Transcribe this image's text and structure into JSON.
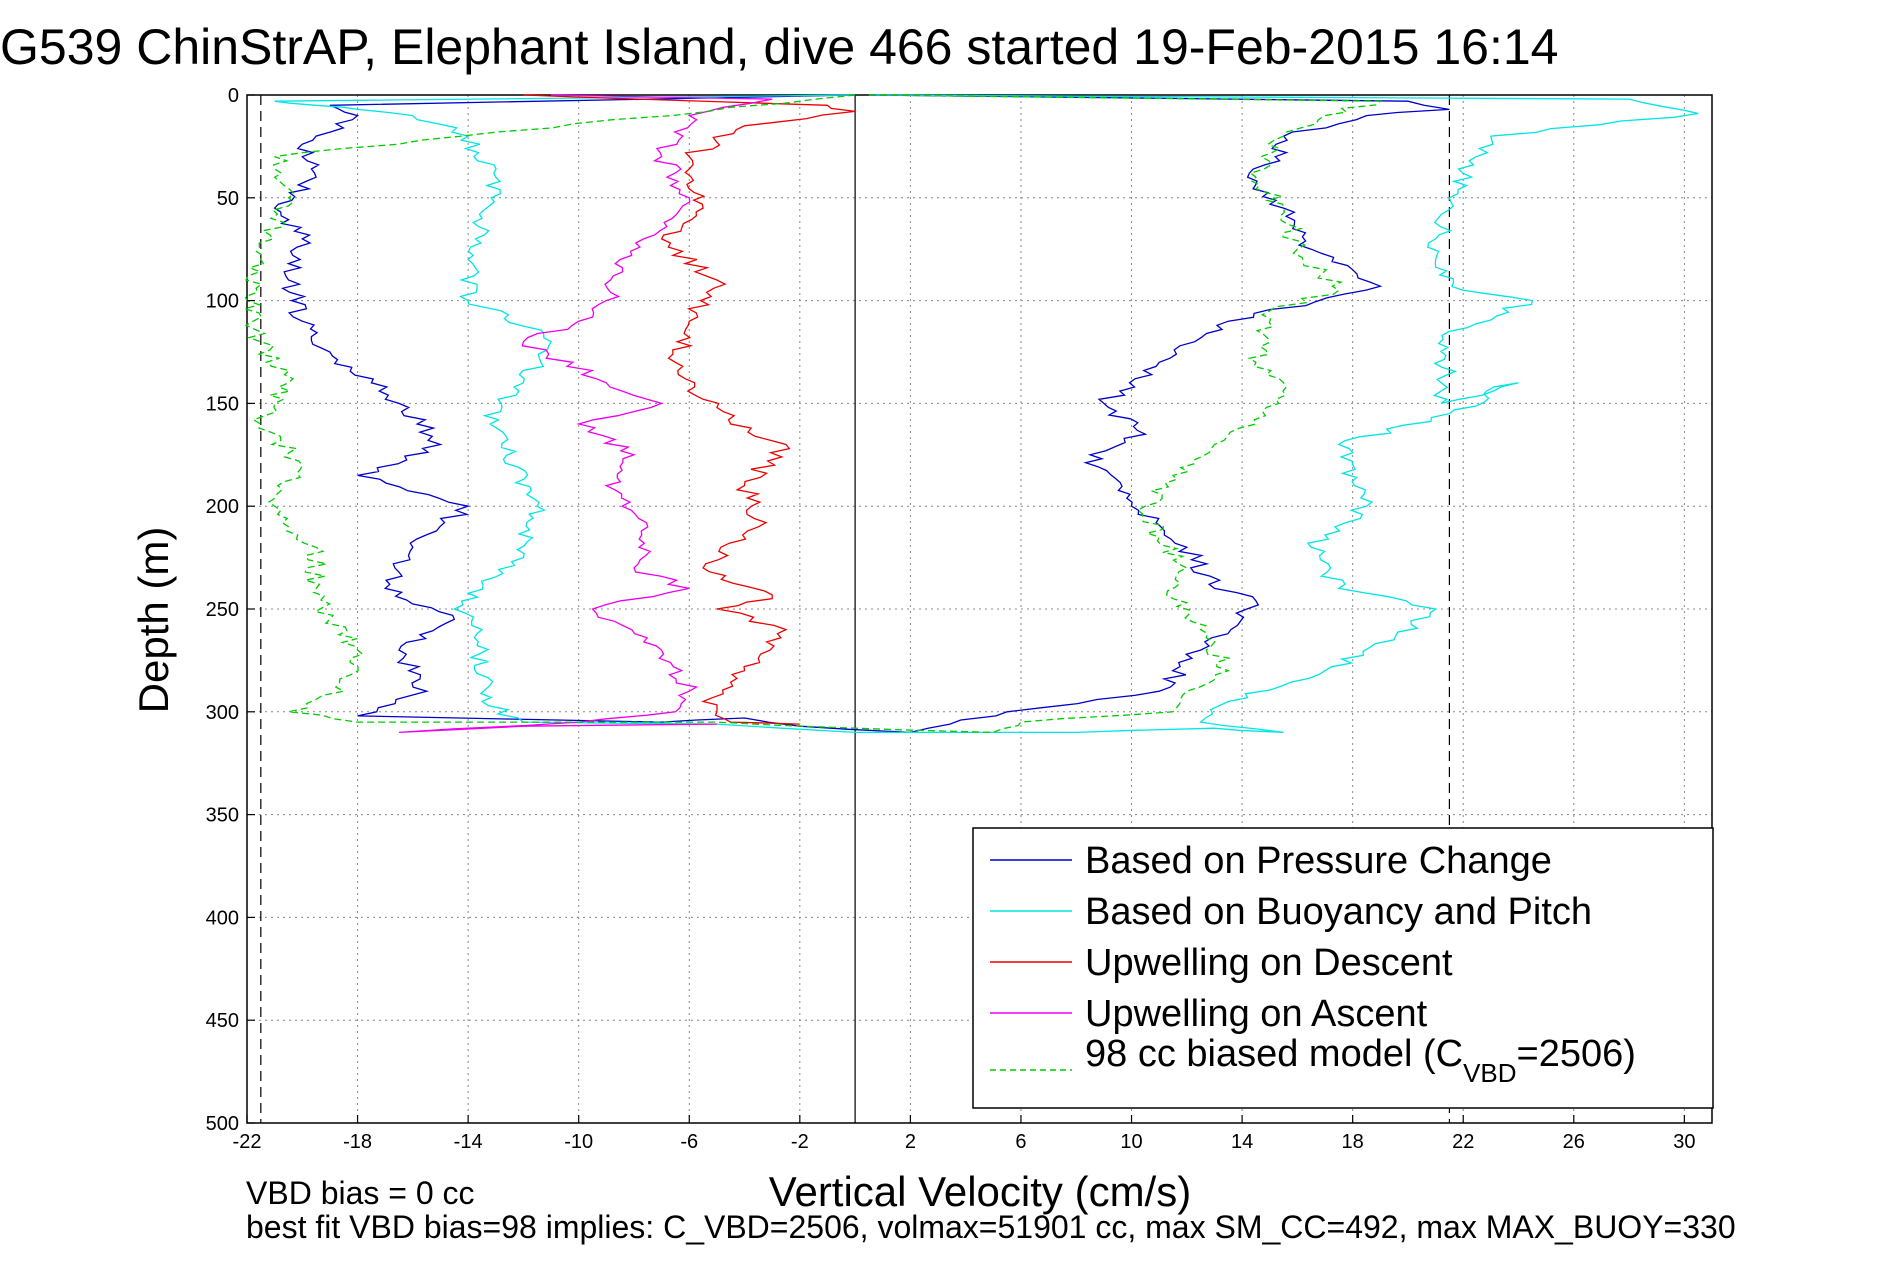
{
  "chart_data": {
    "type": "line",
    "title": "G539 ChinStrAP, Elephant Island, dive 466 started 19-Feb-2015 16:14",
    "xlabel": "Vertical Velocity (cm/s)",
    "ylabel": "Depth (m)",
    "xlim": [
      -22,
      31
    ],
    "ylim": [
      0,
      500
    ],
    "y_reversed": true,
    "grid": true,
    "x_ticks": [
      "-22",
      "-18",
      "-14",
      "-10",
      "-6",
      "-2",
      "2",
      "6",
      "10",
      "14",
      "18",
      "22",
      "26",
      "30"
    ],
    "y_ticks": [
      "0",
      "50",
      "100",
      "150",
      "200",
      "250",
      "300",
      "350",
      "400",
      "450",
      "500"
    ],
    "reference_lines_x": [
      -21.5,
      0,
      21.5
    ],
    "legend": {
      "placement": "bottom-right",
      "entries": [
        "Based on Pressure Change",
        "Based on Buoyancy and Pitch",
        "Upwelling on Descent",
        "Upwelling on Ascent"
      ],
      "model_entry": {
        "prefix": "98 cc biased model (C",
        "sub": "VBD",
        "suffix": "=2506)"
      }
    },
    "series": [
      {
        "name": "Based on Pressure Change",
        "color": "#0000cc",
        "x": [
          0.5,
          20,
          21.5,
          18.5,
          15.5,
          15.2,
          14.2,
          15.5,
          16.5,
          18,
          19,
          13.5,
          11,
          9,
          10.5,
          8.5,
          10,
          12,
          13,
          14.5,
          12.5,
          11,
          5.5,
          2,
          -2,
          -4,
          -7,
          -18,
          -15.5,
          -16.5,
          -14.5,
          -17,
          -16,
          -14,
          -18,
          -15,
          -16.5,
          -17.5,
          -19,
          -20,
          -20.5,
          -20,
          -21,
          -19.5,
          -20,
          -19.5,
          -18,
          -19,
          0
        ],
        "y": [
          0,
          3,
          7,
          10,
          20,
          30,
          40,
          55,
          75,
          85,
          93,
          110,
          130,
          150,
          165,
          175,
          200,
          220,
          240,
          246,
          270,
          290,
          300,
          310,
          307,
          303,
          305,
          302,
          290,
          270,
          255,
          240,
          220,
          200,
          185,
          170,
          150,
          140,
          125,
          110,
          90,
          70,
          55,
          40,
          30,
          20,
          10,
          5,
          0
        ]
      },
      {
        "name": "Based on Buoyancy and Pitch",
        "color": "#00e5e5",
        "x": [
          0.5,
          28,
          30.5,
          23,
          21.5,
          21,
          22,
          24.5,
          21.5,
          21.2,
          24,
          21.5,
          17.5,
          18.5,
          16.5,
          17.5,
          21,
          19.5,
          17,
          13.5,
          12.5,
          15.5,
          13,
          8,
          0,
          -5,
          -12,
          -13.5,
          -13.5,
          -14.5,
          -12,
          -11.5,
          -13.2,
          -12.8,
          -12,
          -11,
          -12.8,
          -14,
          -14,
          -13.5,
          -13,
          -14,
          -16,
          -18,
          -19.5,
          -21,
          0
        ],
        "y": [
          0,
          2,
          9,
          20,
          50,
          80,
          95,
          100,
          115,
          150,
          140,
          155,
          170,
          200,
          220,
          240,
          250,
          265,
          280,
          295,
          305,
          310,
          308,
          310,
          310,
          306,
          305,
          295,
          260,
          250,
          225,
          200,
          160,
          150,
          140,
          120,
          105,
          100,
          80,
          60,
          40,
          20,
          10,
          7,
          5,
          3,
          0
        ]
      },
      {
        "name": "Upwelling on Descent",
        "color": "#ee0000",
        "x": [
          -12,
          -1,
          0,
          -4,
          -6,
          -5.5,
          -7,
          -5,
          -6,
          -6.5,
          -5.5,
          -5,
          -4.5,
          -2.5,
          -4,
          -3.5,
          -5.5,
          -3,
          -5,
          -2.5,
          -4,
          -5.5,
          -5,
          -4.5,
          -2
        ],
        "y": [
          0,
          5,
          8,
          15,
          30,
          55,
          70,
          90,
          110,
          130,
          148,
          152,
          160,
          170,
          190,
          210,
          230,
          245,
          250,
          260,
          280,
          295,
          300,
          305,
          306
        ]
      },
      {
        "name": "Upwelling on Ascent",
        "color": "#ee00ee",
        "x": [
          -11,
          -3,
          -6,
          -7,
          -6,
          -8.5,
          -9,
          -10,
          -12,
          -9,
          -7,
          -10,
          -8,
          -9,
          -7.5,
          -8,
          -6,
          -9.5,
          -7,
          -6,
          -6.5,
          -10,
          -16.5,
          -12,
          -5
        ],
        "y": [
          0,
          2,
          10,
          30,
          50,
          80,
          100,
          110,
          120,
          140,
          150,
          160,
          175,
          190,
          210,
          230,
          240,
          250,
          270,
          290,
          300,
          305,
          310,
          307,
          306
        ]
      },
      {
        "name": "98 cc biased model (CVBD=2506)",
        "color": "#00cc00",
        "x": [
          0.5,
          19,
          17,
          15.5,
          14.5,
          15.5,
          16,
          17.5,
          15,
          14.5,
          15.5,
          14.5,
          13,
          11.5,
          10.5,
          11,
          12,
          11.5,
          12.5,
          13.5,
          12,
          11.5,
          6,
          5,
          0,
          -5,
          -18,
          -20.5,
          -18.5,
          -18,
          -19,
          -19.5,
          -19.5,
          -20.5,
          -21,
          -20,
          -21.5,
          -21,
          -20.5,
          -21.5,
          -22,
          -21.5,
          -20.5,
          -21,
          0
        ],
        "y": [
          0,
          3,
          10,
          20,
          40,
          55,
          75,
          95,
          105,
          130,
          140,
          160,
          170,
          185,
          200,
          215,
          230,
          245,
          260,
          280,
          290,
          300,
          305,
          310,
          308,
          305,
          305,
          300,
          290,
          270,
          255,
          240,
          220,
          210,
          200,
          180,
          160,
          150,
          140,
          120,
          100,
          80,
          50,
          30,
          0
        ]
      }
    ]
  },
  "footer": {
    "vbd_bias": "VBD bias = 0 cc",
    "best_fit": "best fit VBD bias=98 implies: C_VBD=2506, volmax=51901 cc, max SM_CC=492, max MAX_BUOY=330"
  }
}
